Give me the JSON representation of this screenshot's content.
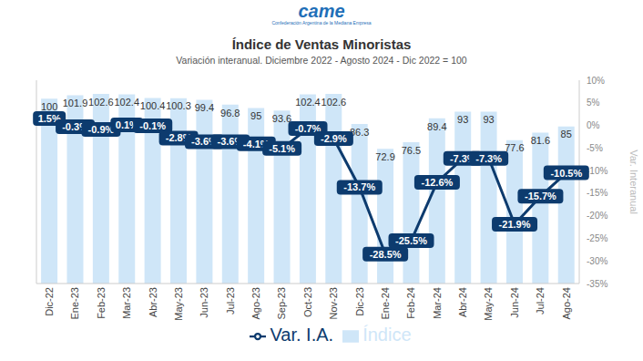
{
  "chart_data": {
    "type": "bar",
    "title": "Índice de Ventas Minoristas",
    "subtitle": "Variación interanual. Diciembre 2022 - Agosto 2024 - Dic 2022 = 100",
    "annotations": [
      "came",
      "Confederación Argentina de la Mediana Empresa"
    ],
    "ylabel": "Var. Interanual",
    "categories": [
      "Dic-22",
      "Ene-23",
      "Feb-23",
      "Mar-23",
      "Abr-23",
      "May-23",
      "Jun-23",
      "Jul-23",
      "Ago-23",
      "Sep-23",
      "Oct-23",
      "Nov-23",
      "Dic-23",
      "Ene-24",
      "Feb-24",
      "Mar-24",
      "Abr-24",
      "May-24",
      "Jun-24",
      "Jul-24",
      "Ago-24"
    ],
    "series": [
      {
        "name": "Var. I.A.",
        "type": "line",
        "color": "#0d3b6e",
        "values": [
          1.5,
          -0.3,
          -0.9,
          0.1,
          -0.1,
          -2.8,
          -3.6,
          -3.6,
          -4.1,
          -5.1,
          -0.7,
          -2.9,
          -13.7,
          -28.5,
          -25.5,
          -12.6,
          -7.3,
          -7.3,
          -21.9,
          -15.7,
          -10.5
        ],
        "value_labels": [
          "1.5%",
          "-0.3%",
          "-0.9%",
          "0.1%",
          "-0.1%",
          "-2.8%",
          "-3.6%",
          "-3.6%",
          "-4.1%",
          "-5.1%",
          "-0.7%",
          "-2.9%",
          "-13.7%",
          "-28.5%",
          "-25.5%",
          "-12.6%",
          "-7.3%",
          "-7.3%",
          "-21.9%",
          "-15.7%",
          "-10.5%"
        ]
      },
      {
        "name": "Índice",
        "type": "bar",
        "axis": "y2",
        "color": "#cfe6f8",
        "values": [
          100,
          101.9,
          102.6,
          102.4,
          100.4,
          100.3,
          99.4,
          96.8,
          95,
          93.6,
          102.4,
          102.6,
          86.3,
          72.9,
          76.5,
          89.4,
          93,
          93,
          77.6,
          81.6,
          85
        ]
      }
    ],
    "ylim": [
      -35,
      10
    ],
    "yticks": [
      {
        "value": 10,
        "label": "10%"
      },
      {
        "value": 5,
        "label": "5%"
      },
      {
        "value": 0,
        "label": "0%"
      },
      {
        "value": -5,
        "label": "-5%"
      },
      {
        "value": -10,
        "label": "-10%"
      },
      {
        "value": -15,
        "label": "-15%"
      },
      {
        "value": -20,
        "label": "-20%"
      },
      {
        "value": -25,
        "label": "-25%"
      },
      {
        "value": -30,
        "label": "-30%"
      },
      {
        "value": -35,
        "label": "-35%"
      }
    ],
    "y2lim": [
      0,
      110
    ],
    "data_labels": true,
    "legend": "bottom",
    "grid": false
  }
}
